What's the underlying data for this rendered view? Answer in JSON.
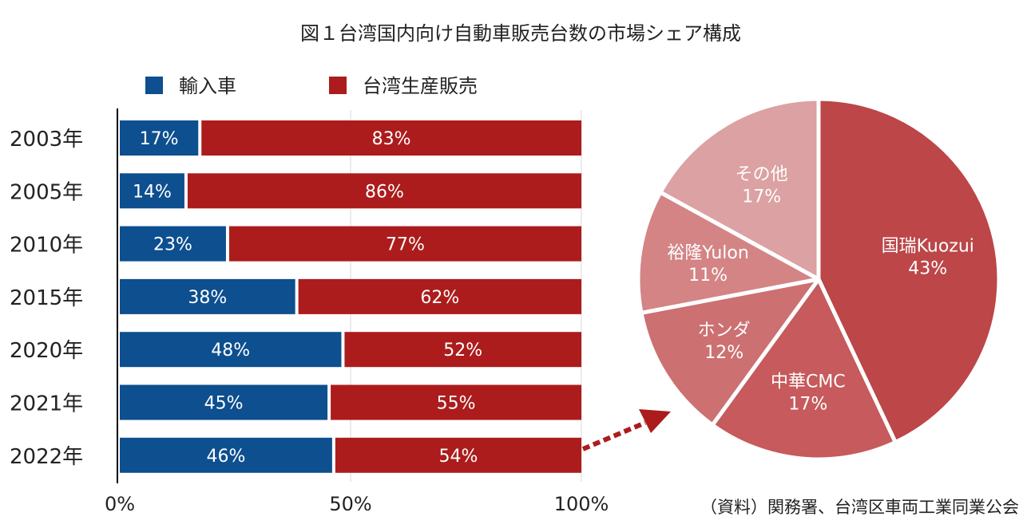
{
  "title": "図１台湾国内向け自動車販売台数の市場シェア構成",
  "source": "（資料）関務署、台湾区車両工業同業公会",
  "chart_data": [
    {
      "type": "bar",
      "orientation": "horizontal",
      "stacked": true,
      "categories": [
        "2003年",
        "2005年",
        "2010年",
        "2015年",
        "2020年",
        "2021年",
        "2022年"
      ],
      "series": [
        {
          "name": "輸入車",
          "values": [
            17,
            14,
            23,
            38,
            48,
            45,
            46
          ],
          "labels": [
            "17%",
            "14%",
            "23%",
            "38%",
            "48%",
            "45%",
            "46%"
          ],
          "color": "#0d4f8f"
        },
        {
          "name": "台湾生産販売",
          "values": [
            83,
            86,
            77,
            62,
            52,
            55,
            54
          ],
          "labels": [
            "83%",
            "86%",
            "77%",
            "62%",
            "52%",
            "55%",
            "54%"
          ],
          "color": "#ac1c1c"
        }
      ],
      "xlim": [
        0,
        100
      ],
      "xticks": [
        "0%",
        "50%",
        "100%"
      ],
      "grid": true,
      "legend": "top"
    },
    {
      "type": "pie",
      "slices": [
        {
          "name": "国瑞Kuozui",
          "value": 43,
          "label": "43%",
          "color": "#bc4648"
        },
        {
          "name": "中華CMC",
          "value": 17,
          "label": "17%",
          "color": "#c65a5c"
        },
        {
          "name": "ホンダ",
          "value": 12,
          "label": "12%",
          "color": "#cd7072"
        },
        {
          "name": "裕隆Yulon",
          "value": 11,
          "label": "11%",
          "color": "#d48485"
        },
        {
          "name": "その他",
          "value": 17,
          "label": "17%",
          "color": "#dca1a2"
        }
      ]
    }
  ]
}
